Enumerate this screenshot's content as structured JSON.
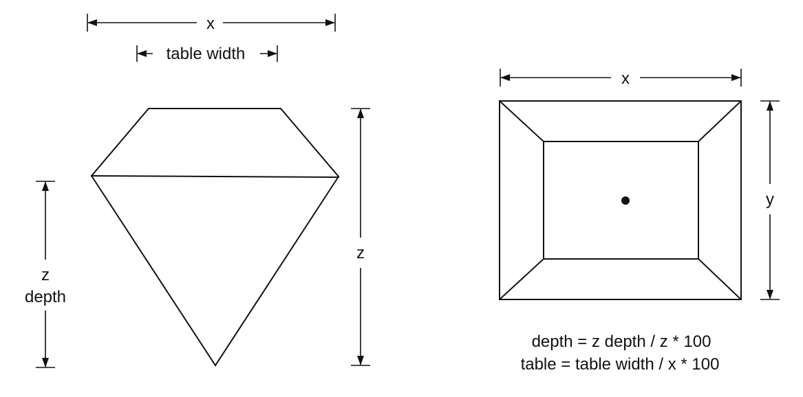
{
  "labels": {
    "top_x": "x",
    "table_width": "table width",
    "right_z": "z",
    "left_z": "z",
    "left_depth": "depth",
    "top_view_x": "x",
    "top_view_y": "y"
  },
  "formulas": {
    "depth": "depth = z depth / z * 100",
    "table": "table = table width / x * 100"
  },
  "colors": {
    "stroke": "#111111",
    "background": "#ffffff"
  }
}
